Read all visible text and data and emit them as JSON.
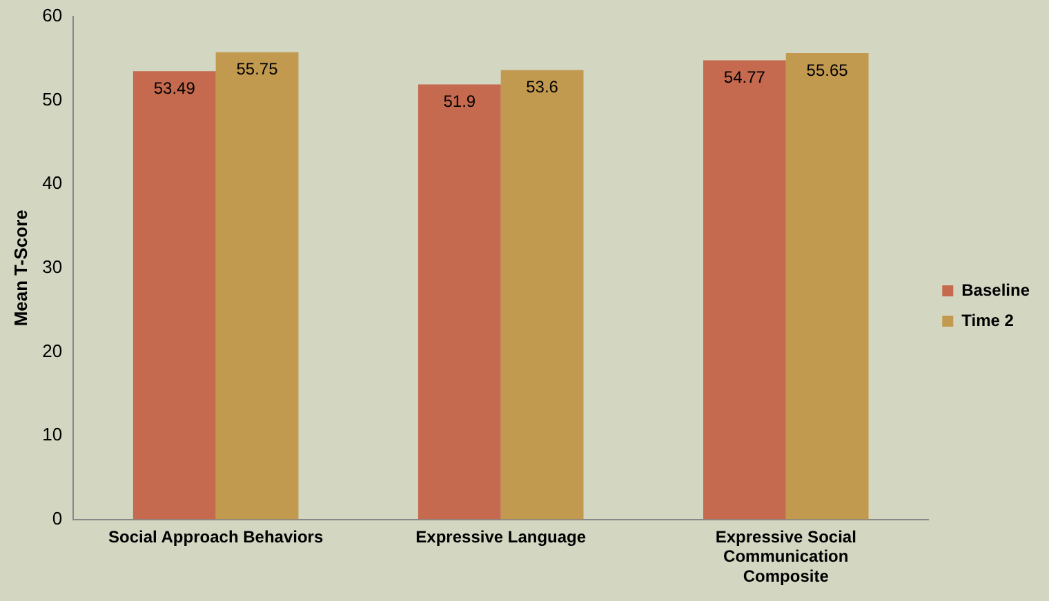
{
  "chart_data": {
    "type": "bar",
    "ylabel": "Mean T-Score",
    "categories": [
      "Social Approach Behaviors",
      "Expressive Language",
      "Expressive Social Communication Composite"
    ],
    "series": [
      {
        "name": "Baseline",
        "color": "#c5694f",
        "values": [
          53.49,
          51.9,
          54.77
        ]
      },
      {
        "name": "Time 2",
        "color": "#c29a4f",
        "values": [
          55.75,
          53.6,
          55.65
        ]
      }
    ],
    "ylim": [
      0,
      60
    ],
    "yticks": [
      0,
      10,
      20,
      30,
      40,
      50,
      60
    ],
    "grid": false,
    "legend": "right",
    "data_labels": true
  }
}
